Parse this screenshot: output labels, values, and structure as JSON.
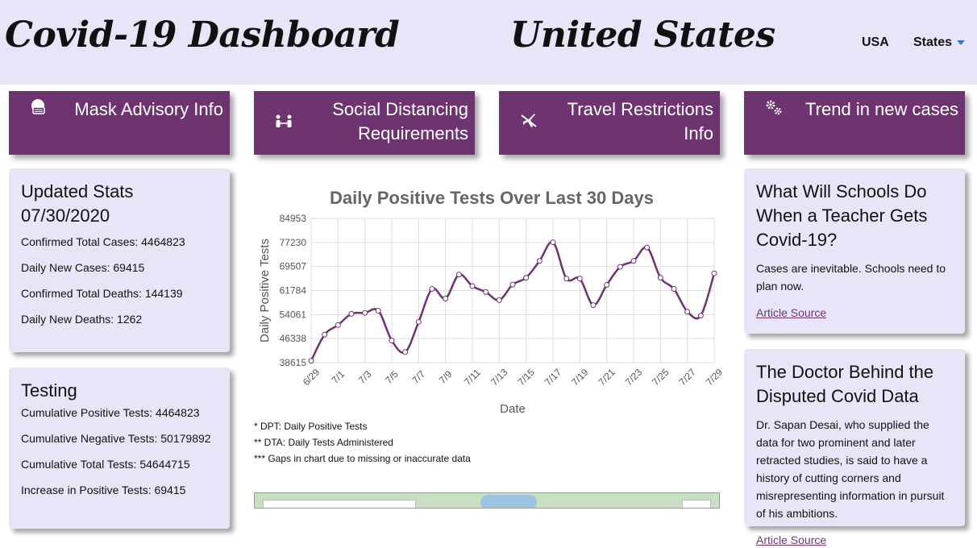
{
  "header": {
    "app_title": "Covid-19 Dashboard",
    "region_title": "United States",
    "nav": {
      "usa": "USA",
      "states": "States"
    }
  },
  "tiles": [
    {
      "label_line1": "Mask Advisory Info",
      "label_line2": "",
      "icon": "mask-icon"
    },
    {
      "label_line1": "Social Distancing",
      "label_line2": "Requirements",
      "icon": "distancing-icon"
    },
    {
      "label_line1": "Travel Restrictions",
      "label_line2": "Info",
      "icon": "plane-icon"
    },
    {
      "label_line1": "Trend in new cases",
      "label_line2": "",
      "icon": "gears-icon"
    }
  ],
  "stats": {
    "title_line1": "Updated Stats",
    "title_line2": "07/30/2020",
    "items": [
      "Confirmed Total Cases: 4464823",
      "Daily New Cases: 69415",
      "Confirmed Total Deaths: 144139",
      "Daily New Deaths: 1262"
    ]
  },
  "testing": {
    "title": "Testing",
    "items": [
      "Cumulative Positive Tests: 4464823",
      "Cumulative Negative Tests: 50179892",
      "Cumulative Total Tests: 54644715",
      "Increase in Positive Tests: 69415"
    ]
  },
  "chart_notes": [
    "* DPT: Daily Positive Tests",
    "** DTA: Daily Tests Administered",
    "*** Gaps in chart due to missing or inaccurate data"
  ],
  "news": [
    {
      "title": "What Will Schools Do When a Teacher Gets Covid-19?",
      "summary": "Cases are inevitable. Schools need to plan now.",
      "link": "Article Source"
    },
    {
      "title": "The Doctor Behind the Disputed Covid Data",
      "summary": "Dr. Sapan Desai, who supplied the data for two prominent and later retracted studies, is said to have a history of cutting corners and misrepresenting information in pursuit of his ambitions.",
      "link": "Article Source"
    }
  ],
  "colors": {
    "accent": "#6e3471",
    "panel": "#e6e6f8",
    "caret": "#3a78c8"
  },
  "chart_data": {
    "type": "line",
    "title": "Daily Positive Tests Over Last 30 Days",
    "xlabel": "Date",
    "ylabel": "Daily Positive Tests",
    "y_ticks": [
      38615,
      46338,
      54061,
      61784,
      69507,
      77230,
      84953
    ],
    "ylim": [
      38615,
      84953
    ],
    "x_tick_labels": [
      "6/29",
      "7/1",
      "7/3",
      "7/5",
      "7/7",
      "7/9",
      "7/11",
      "7/13",
      "7/15",
      "7/17",
      "7/19",
      "7/21",
      "7/23",
      "7/25",
      "7/27",
      "7/29"
    ],
    "grid": true,
    "series": [
      {
        "x": [
          "6/29",
          "6/30",
          "7/1",
          "7/2",
          "7/3",
          "7/4",
          "7/5",
          "7/6",
          "7/7",
          "7/8",
          "7/9",
          "7/10",
          "7/11",
          "7/12",
          "7/13",
          "7/14",
          "7/15",
          "7/16",
          "7/17",
          "7/18",
          "7/19",
          "7/20",
          "7/21",
          "7/22",
          "7/23",
          "7/24",
          "7/25",
          "7/26",
          "7/27",
          "7/28",
          "7/29"
        ],
        "values": [
          39200,
          47600,
          50700,
          54300,
          54600,
          55300,
          45700,
          42000,
          51700,
          62300,
          59200,
          66900,
          63200,
          61300,
          58700,
          63700,
          65900,
          71300,
          77300,
          65600,
          65600,
          57100,
          63600,
          69400,
          71300,
          75600,
          65900,
          62300,
          55000,
          53700,
          67300
        ]
      }
    ]
  }
}
